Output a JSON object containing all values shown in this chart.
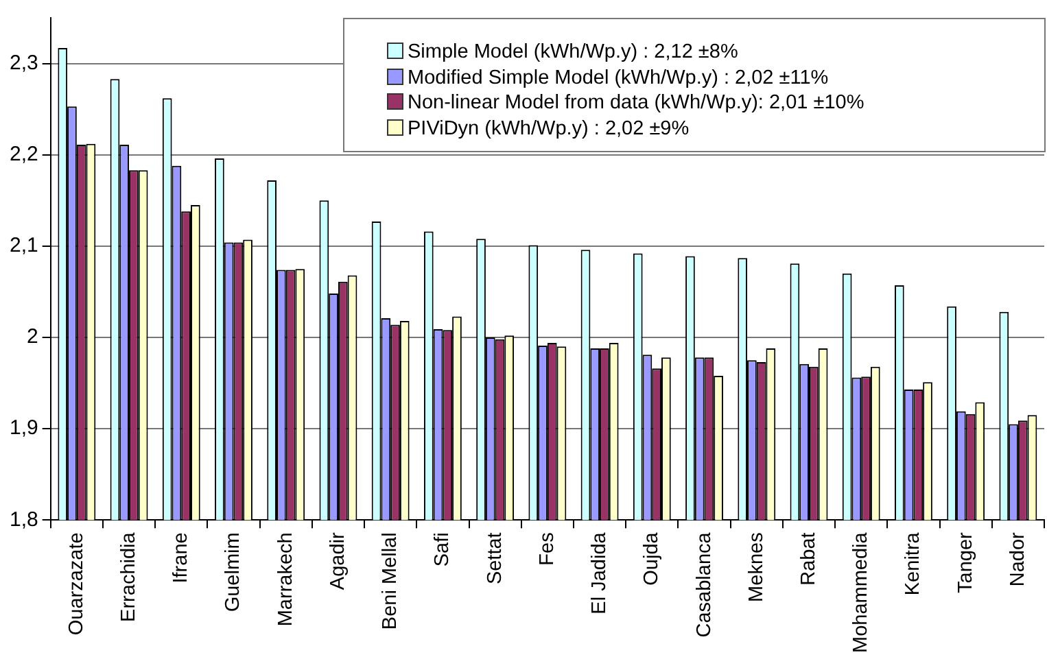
{
  "chart_data": {
    "type": "bar",
    "categories": [
      "Ouarzazate",
      "Errachidia",
      "Ifrane",
      "Guelmim",
      "Marrakech",
      "Agadir",
      "Beni Mellal",
      "Safi",
      "Settat",
      "Fes",
      "El Jadida",
      "Oujda",
      "Casablanca",
      "Meknes",
      "Rabat",
      "Mohammedia",
      "Kenitra",
      "Tanger",
      "Nador"
    ],
    "series": [
      {
        "name": "Simple Model (kWh/Wp.y) : 2,12 ±8%",
        "color": "#ccffff",
        "values": [
          2.317,
          2.283,
          2.262,
          2.196,
          2.172,
          2.15,
          2.127,
          2.116,
          2.108,
          2.101,
          2.096,
          2.092,
          2.089,
          2.087,
          2.081,
          2.07,
          2.057,
          2.034,
          2.028
        ]
      },
      {
        "name": "Modified Simple Model (kWh/Wp.y) : 2,02 ±11%",
        "color": "#9999ff",
        "values": [
          2.253,
          2.211,
          2.188,
          2.104,
          2.074,
          2.048,
          2.021,
          2.009,
          2.0,
          1.991,
          1.988,
          1.981,
          1.978,
          1.975,
          1.971,
          1.956,
          1.943,
          1.919,
          1.905
        ]
      },
      {
        "name": "Non-linear Model from data (kWh/Wp.y): 2,01 ±10%",
        "color": "#993366",
        "values": [
          2.211,
          2.183,
          2.138,
          2.104,
          2.074,
          2.061,
          2.014,
          2.008,
          1.998,
          1.994,
          1.988,
          1.966,
          1.978,
          1.973,
          1.968,
          1.957,
          1.943,
          1.916,
          1.909
        ]
      },
      {
        "name": "PIViDyn (kWh/Wp.y) : 2,02 ±9%",
        "color": "#ffffcc",
        "values": [
          2.212,
          2.183,
          2.145,
          2.107,
          2.075,
          2.068,
          2.018,
          2.023,
          2.002,
          1.99,
          1.994,
          1.978,
          1.958,
          1.988,
          1.988,
          1.968,
          1.951,
          1.929,
          1.915
        ]
      }
    ],
    "ylim": [
      1.8,
      2.35
    ],
    "yticks": [
      {
        "value": 1.8,
        "label": "1,8"
      },
      {
        "value": 1.9,
        "label": "1,9"
      },
      2,
      {
        "value": 2.1,
        "label": "2,1"
      },
      {
        "value": 2.2,
        "label": "2,2"
      },
      {
        "value": 2.3,
        "label": "2,3"
      }
    ],
    "grid": "y",
    "legend": "top right"
  }
}
